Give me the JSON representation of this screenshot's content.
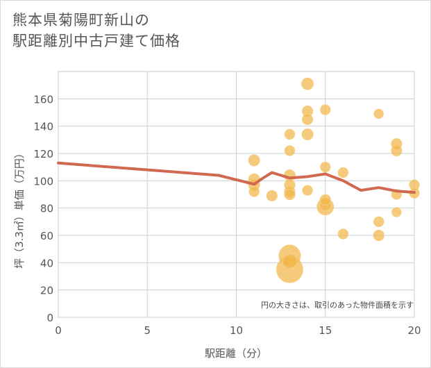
{
  "title": {
    "line1": "熊本県菊陽町新山の",
    "line2": "駅距離別中古戸建て価格"
  },
  "chart_data": {
    "type": "scatter",
    "xlabel": "駅距離（分）",
    "ylabel": "坪（3.3㎡）単価（万円）",
    "note": "円の大きさは、取引のあった物件面積を示す",
    "xlim": [
      0,
      20
    ],
    "ylim": [
      0,
      180
    ],
    "xticks": [
      0,
      5,
      10,
      15,
      20
    ],
    "yticks": [
      0,
      20,
      40,
      60,
      80,
      100,
      120,
      140,
      160
    ],
    "grid": true,
    "colors": {
      "bubble": "#f2b54b",
      "line": "#d0694f"
    },
    "series": [
      {
        "type": "bubble",
        "points": [
          {
            "x": 11,
            "y": 115,
            "s": 1
          },
          {
            "x": 11,
            "y": 101,
            "s": 1
          },
          {
            "x": 11,
            "y": 97,
            "s": 1
          },
          {
            "x": 11,
            "y": 92,
            "s": 0.8
          },
          {
            "x": 12,
            "y": 89,
            "s": 0.9
          },
          {
            "x": 13,
            "y": 134,
            "s": 0.8
          },
          {
            "x": 13,
            "y": 122,
            "s": 0.8
          },
          {
            "x": 13,
            "y": 104,
            "s": 1
          },
          {
            "x": 13,
            "y": 97,
            "s": 0.9
          },
          {
            "x": 13,
            "y": 92,
            "s": 0.9
          },
          {
            "x": 13,
            "y": 90,
            "s": 0.9
          },
          {
            "x": 13,
            "y": 45,
            "s": 3.8
          },
          {
            "x": 13,
            "y": 41,
            "s": 1.6
          },
          {
            "x": 13,
            "y": 35,
            "s": 5.6
          },
          {
            "x": 14,
            "y": 171,
            "s": 1.1
          },
          {
            "x": 14,
            "y": 151,
            "s": 0.9
          },
          {
            "x": 14,
            "y": 145,
            "s": 0.9
          },
          {
            "x": 14,
            "y": 134,
            "s": 1
          },
          {
            "x": 14,
            "y": 93,
            "s": 0.8
          },
          {
            "x": 15,
            "y": 152,
            "s": 0.8
          },
          {
            "x": 15,
            "y": 110,
            "s": 0.8
          },
          {
            "x": 15,
            "y": 86,
            "s": 0.9
          },
          {
            "x": 15,
            "y": 82,
            "s": 1
          },
          {
            "x": 15,
            "y": 81,
            "s": 2.2
          },
          {
            "x": 16,
            "y": 106,
            "s": 0.8
          },
          {
            "x": 16,
            "y": 61,
            "s": 0.8
          },
          {
            "x": 18,
            "y": 149,
            "s": 0.7
          },
          {
            "x": 18,
            "y": 70,
            "s": 0.8
          },
          {
            "x": 18,
            "y": 60,
            "s": 0.9
          },
          {
            "x": 19,
            "y": 127,
            "s": 0.9
          },
          {
            "x": 19,
            "y": 122,
            "s": 0.9
          },
          {
            "x": 19,
            "y": 90,
            "s": 0.8
          },
          {
            "x": 19,
            "y": 77,
            "s": 0.7
          },
          {
            "x": 20,
            "y": 97,
            "s": 0.8
          },
          {
            "x": 20,
            "y": 91,
            "s": 0.8
          }
        ]
      },
      {
        "type": "line",
        "x": [
          0,
          9,
          11,
          11.5,
          12,
          13,
          14,
          15,
          16,
          17,
          18,
          19,
          20
        ],
        "y": [
          113,
          104,
          97.5,
          102,
          106,
          102,
          103,
          105,
          100,
          93,
          95,
          92.5,
          91.5
        ]
      }
    ]
  }
}
